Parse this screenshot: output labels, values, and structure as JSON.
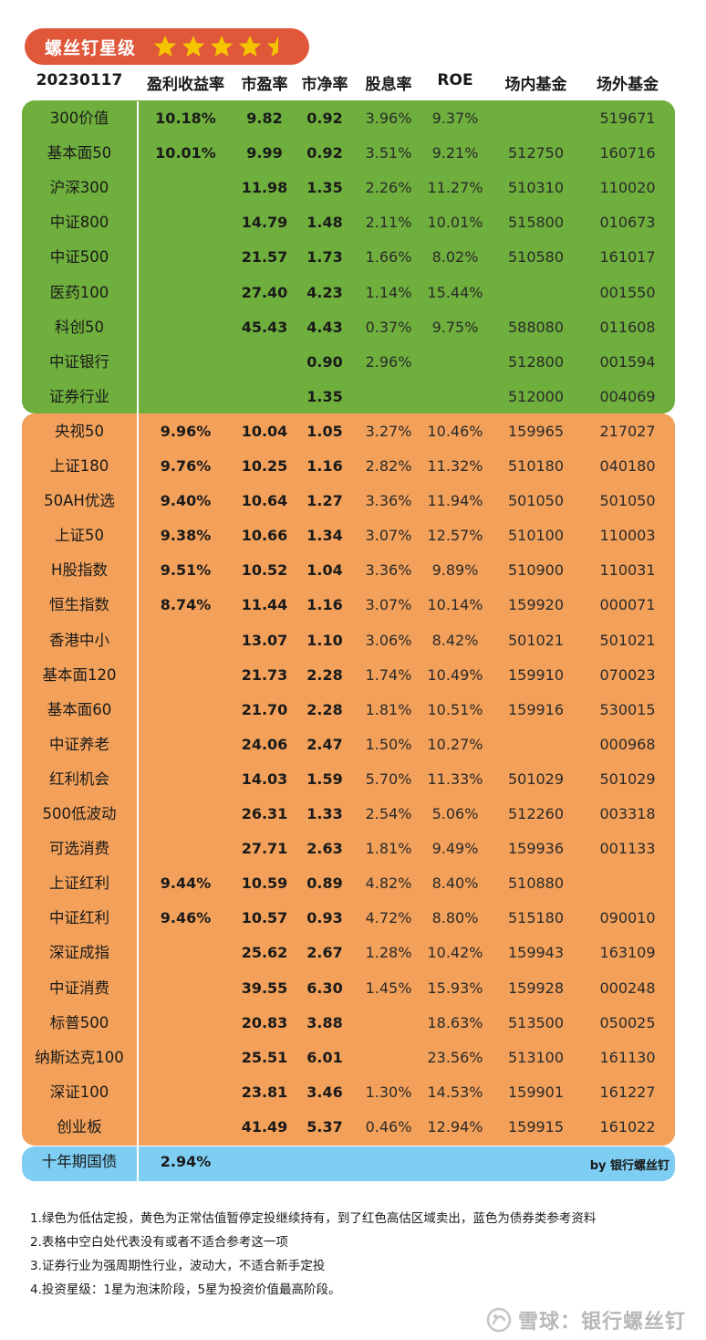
{
  "header": {
    "title": "螺丝钉星级",
    "stars": [
      {
        "icon": "star-full-icon",
        "fill": 1
      },
      {
        "icon": "star-full-icon",
        "fill": 1
      },
      {
        "icon": "star-full-icon",
        "fill": 1
      },
      {
        "icon": "star-full-icon",
        "fill": 1
      },
      {
        "icon": "star-half-icon",
        "fill": 0.5
      }
    ],
    "rating": 4.5
  },
  "columns": [
    "20230117",
    "盈利收益率",
    "市盈率",
    "市净率",
    "股息率",
    "ROE",
    "场内基金",
    "场外基金"
  ],
  "groups": {
    "green": {
      "color": "#6faf3d",
      "rows": [
        [
          "300价值",
          "10.18%",
          "9.82",
          "0.92",
          "3.96%",
          "9.37%",
          "",
          "519671"
        ],
        [
          "基本面50",
          "10.01%",
          "9.99",
          "0.92",
          "3.51%",
          "9.21%",
          "512750",
          "160716"
        ],
        [
          "沪深300",
          "",
          "11.98",
          "1.35",
          "2.26%",
          "11.27%",
          "510310",
          "110020"
        ],
        [
          "中证800",
          "",
          "14.79",
          "1.48",
          "2.11%",
          "10.01%",
          "515800",
          "010673"
        ],
        [
          "中证500",
          "",
          "21.57",
          "1.73",
          "1.66%",
          "8.02%",
          "510580",
          "161017"
        ],
        [
          "医药100",
          "",
          "27.40",
          "4.23",
          "1.14%",
          "15.44%",
          "",
          "001550"
        ],
        [
          "科创50",
          "",
          "45.43",
          "4.43",
          "0.37%",
          "9.75%",
          "588080",
          "011608"
        ],
        [
          "中证银行",
          "",
          "",
          "0.90",
          "2.96%",
          "",
          "512800",
          "001594"
        ],
        [
          "证券行业",
          "",
          "",
          "1.35",
          "",
          "",
          "512000",
          "004069"
        ]
      ]
    },
    "orange": {
      "color": "#f3a15a",
      "rows": [
        [
          "央视50",
          "9.96%",
          "10.04",
          "1.05",
          "3.27%",
          "10.46%",
          "159965",
          "217027"
        ],
        [
          "上证180",
          "9.76%",
          "10.25",
          "1.16",
          "2.82%",
          "11.32%",
          "510180",
          "040180"
        ],
        [
          "50AH优选",
          "9.40%",
          "10.64",
          "1.27",
          "3.36%",
          "11.94%",
          "501050",
          "501050"
        ],
        [
          "上证50",
          "9.38%",
          "10.66",
          "1.34",
          "3.07%",
          "12.57%",
          "510100",
          "110003"
        ],
        [
          "H股指数",
          "9.51%",
          "10.52",
          "1.04",
          "3.36%",
          "9.89%",
          "510900",
          "110031"
        ],
        [
          "恒生指数",
          "8.74%",
          "11.44",
          "1.16",
          "3.07%",
          "10.14%",
          "159920",
          "000071"
        ],
        [
          "香港中小",
          "",
          "13.07",
          "1.10",
          "3.06%",
          "8.42%",
          "501021",
          "501021"
        ],
        [
          "基本面120",
          "",
          "21.73",
          "2.28",
          "1.74%",
          "10.49%",
          "159910",
          "070023"
        ],
        [
          "基本面60",
          "",
          "21.70",
          "2.28",
          "1.81%",
          "10.51%",
          "159916",
          "530015"
        ],
        [
          "中证养老",
          "",
          "24.06",
          "2.47",
          "1.50%",
          "10.27%",
          "",
          "000968"
        ],
        [
          "红利机会",
          "",
          "14.03",
          "1.59",
          "5.70%",
          "11.33%",
          "501029",
          "501029"
        ],
        [
          "500低波动",
          "",
          "26.31",
          "1.33",
          "2.54%",
          "5.06%",
          "512260",
          "003318"
        ],
        [
          "可选消费",
          "",
          "27.71",
          "2.63",
          "1.81%",
          "9.49%",
          "159936",
          "001133"
        ],
        [
          "上证红利",
          "9.44%",
          "10.59",
          "0.89",
          "4.82%",
          "8.40%",
          "510880",
          ""
        ],
        [
          "中证红利",
          "9.46%",
          "10.57",
          "0.93",
          "4.72%",
          "8.80%",
          "515180",
          "090010"
        ],
        [
          "深证成指",
          "",
          "25.62",
          "2.67",
          "1.28%",
          "10.42%",
          "159943",
          "163109"
        ],
        [
          "中证消费",
          "",
          "39.55",
          "6.30",
          "1.45%",
          "15.93%",
          "159928",
          "000248"
        ],
        [
          "标普500",
          "",
          "20.83",
          "3.88",
          "",
          "18.63%",
          "513500",
          "050025"
        ],
        [
          "纳斯达克100",
          "",
          "25.51",
          "6.01",
          "",
          "23.56%",
          "513100",
          "161130"
        ],
        [
          "深证100",
          "",
          "23.81",
          "3.46",
          "1.30%",
          "14.53%",
          "159901",
          "161227"
        ],
        [
          "创业板",
          "",
          "41.49",
          "5.37",
          "0.46%",
          "12.94%",
          "159915",
          "161022"
        ]
      ]
    },
    "blue": {
      "color": "#7ecdf3",
      "rows": [
        [
          "十年期国债",
          "2.94%",
          "",
          "",
          "",
          "",
          "",
          ""
        ]
      ]
    }
  },
  "byline": "by 银行螺丝钉",
  "notes": [
    "1.绿色为低估定投，黄色为正常估值暂停定投继续持有，到了红色高估区域卖出，蓝色为债券类参考资料",
    "2.表格中空白处代表没有或者不适合参考这一项",
    "3.证券行业为强周期性行业，波动大，不适合新手定投",
    "4.投资星级：1星为泡沫阶段，5星为投资价值最高阶段。"
  ],
  "watermark": {
    "icon": "snowball-logo-icon",
    "text": "雪球：银行螺丝钉"
  }
}
